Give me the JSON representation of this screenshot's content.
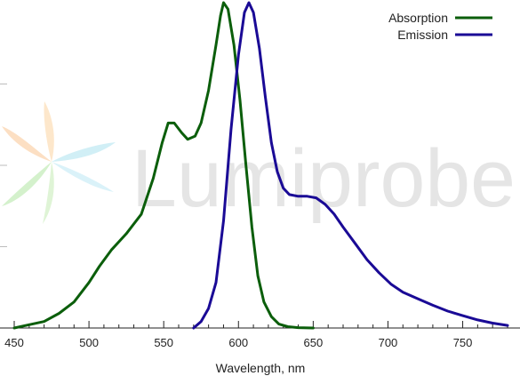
{
  "chart_data": {
    "type": "line",
    "xlabel": "Wavelength, nm",
    "ylabel": "",
    "title": "",
    "xlim": [
      450,
      780
    ],
    "ylim": [
      0,
      1.0
    ],
    "xticks": [
      450,
      500,
      550,
      600,
      650,
      700,
      750
    ],
    "grid": "horizontal",
    "legend_position": "top-right",
    "watermark": "Lumiprobe",
    "series": [
      {
        "name": "Absorption",
        "color": "#0b5e0b",
        "points": [
          [
            450,
            0.0
          ],
          [
            460,
            0.01
          ],
          [
            470,
            0.02
          ],
          [
            480,
            0.045
          ],
          [
            490,
            0.08
          ],
          [
            500,
            0.14
          ],
          [
            507,
            0.19
          ],
          [
            515,
            0.24
          ],
          [
            525,
            0.29
          ],
          [
            535,
            0.35
          ],
          [
            543,
            0.46
          ],
          [
            549,
            0.57
          ],
          [
            553,
            0.63
          ],
          [
            557,
            0.63
          ],
          [
            562,
            0.6
          ],
          [
            566,
            0.58
          ],
          [
            571,
            0.59
          ],
          [
            575,
            0.63
          ],
          [
            580,
            0.73
          ],
          [
            585,
            0.87
          ],
          [
            588,
            0.96
          ],
          [
            590,
            1.0
          ],
          [
            593,
            0.98
          ],
          [
            597,
            0.87
          ],
          [
            601,
            0.7
          ],
          [
            605,
            0.5
          ],
          [
            609,
            0.31
          ],
          [
            613,
            0.16
          ],
          [
            617,
            0.08
          ],
          [
            622,
            0.035
          ],
          [
            627,
            0.012
          ],
          [
            633,
            0.004
          ],
          [
            640,
            0.001
          ],
          [
            650,
            0.0
          ]
        ]
      },
      {
        "name": "Emission",
        "color": "#1a0a96",
        "points": [
          [
            570,
            0.0
          ],
          [
            575,
            0.02
          ],
          [
            580,
            0.06
          ],
          [
            585,
            0.14
          ],
          [
            590,
            0.33
          ],
          [
            595,
            0.61
          ],
          [
            600,
            0.84
          ],
          [
            604,
            0.97
          ],
          [
            607,
            1.0
          ],
          [
            610,
            0.97
          ],
          [
            614,
            0.86
          ],
          [
            618,
            0.71
          ],
          [
            622,
            0.57
          ],
          [
            626,
            0.48
          ],
          [
            630,
            0.43
          ],
          [
            634,
            0.41
          ],
          [
            640,
            0.405
          ],
          [
            646,
            0.405
          ],
          [
            652,
            0.4
          ],
          [
            658,
            0.38
          ],
          [
            664,
            0.35
          ],
          [
            670,
            0.31
          ],
          [
            678,
            0.26
          ],
          [
            686,
            0.21
          ],
          [
            694,
            0.17
          ],
          [
            702,
            0.135
          ],
          [
            710,
            0.11
          ],
          [
            720,
            0.09
          ],
          [
            730,
            0.07
          ],
          [
            740,
            0.052
          ],
          [
            750,
            0.038
          ],
          [
            760,
            0.025
          ],
          [
            770,
            0.015
          ],
          [
            780,
            0.008
          ]
        ]
      }
    ]
  }
}
